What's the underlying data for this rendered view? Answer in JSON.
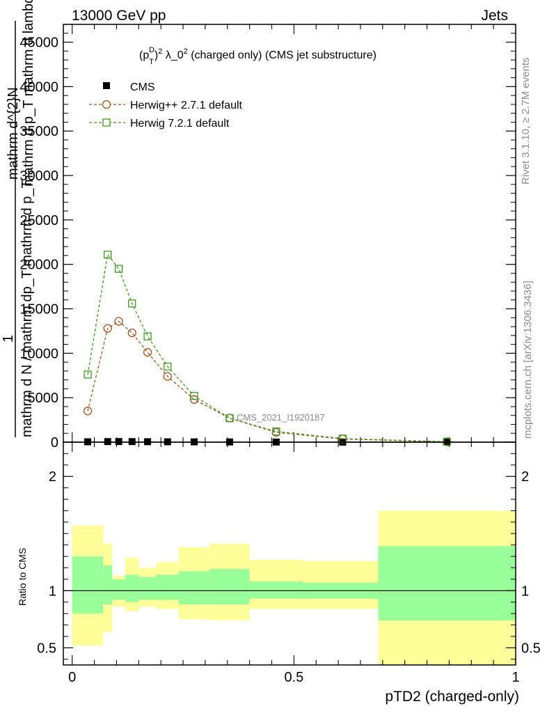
{
  "header": {
    "left": "13000 GeV pp",
    "right": "Jets"
  },
  "side_labels": {
    "rivet": "Rivet 3.1.10, ≥ 2.7M events",
    "mcplots": "mcplots.cern.ch [arXiv:1306.3436]"
  },
  "chart_data": [
    {
      "panel": "main",
      "type": "line",
      "title": "(p_T^D)^2 λ_0^2 (charged only) (CMS jet substructure)",
      "title_parts": {
        "p": "(p",
        "D": "D",
        "T": "T",
        "close": ")",
        "sup2a": "2",
        "lam": " λ_0",
        "sup2b": "2",
        "rest": " (charged only) (CMS jet substructure)"
      },
      "ylabel_lines": [
        "mathrm d^{2}N",
        "mathrm d p_T mathrm d lambda",
        "1",
        "mathrm d N / mathrm dp_T mathrm d p_T"
      ],
      "ylim": [
        0,
        47000
      ],
      "xlim": [
        -0.02,
        1.0
      ],
      "yticks": [
        0,
        5000,
        10000,
        15000,
        20000,
        25000,
        30000,
        35000,
        40000,
        45000
      ],
      "ytick_labels": [
        "0",
        "5000",
        "10000",
        "15000",
        "20000",
        "25000",
        "30000",
        "35000",
        "40000",
        "45000"
      ],
      "legend_position": "top-left",
      "watermark": "CMS_2021_I1920187",
      "series": [
        {
          "name": "CMS",
          "marker": "filled-square",
          "color": "#000000",
          "x": [
            0.035,
            0.08,
            0.105,
            0.135,
            0.17,
            0.215,
            0.275,
            0.355,
            0.46,
            0.61,
            0.845
          ],
          "y": [
            40,
            60,
            65,
            60,
            50,
            40,
            30,
            20,
            10,
            4,
            1
          ]
        },
        {
          "name": "Herwig++ 2.7.1 default",
          "marker": "open-circle",
          "color": "#a0521e",
          "x": [
            0.035,
            0.08,
            0.105,
            0.135,
            0.17,
            0.215,
            0.275,
            0.355,
            0.46,
            0.61,
            0.845
          ],
          "y": [
            3500,
            12800,
            13600,
            12300,
            10100,
            7400,
            4800,
            2700,
            1100,
            350,
            40
          ]
        },
        {
          "name": "Herwig 7.2.1 default",
          "marker": "open-square",
          "color": "#3d9a1f",
          "x": [
            0.035,
            0.08,
            0.105,
            0.135,
            0.17,
            0.215,
            0.275,
            0.355,
            0.46,
            0.61,
            0.845
          ],
          "y": [
            7600,
            21100,
            19500,
            15600,
            11900,
            8500,
            5200,
            2700,
            1200,
            400,
            50
          ]
        }
      ]
    },
    {
      "panel": "ratio",
      "type": "area",
      "ylabel": "Ratio to CMS",
      "ylim": [
        0.35,
        2.3
      ],
      "xlim": [
        -0.02,
        1.0
      ],
      "yticks": [
        0.5,
        1,
        2
      ],
      "ytick_labels": [
        "0.5",
        "1",
        "2"
      ],
      "xticks": [
        0,
        0.5,
        1
      ],
      "xtick_labels": [
        "0",
        "0.5",
        "1"
      ],
      "xlabel": "pTD2 (charged-only)",
      "reference_line": 1,
      "bands": {
        "edges": [
          0,
          0.07,
          0.09,
          0.12,
          0.15,
          0.19,
          0.24,
          0.31,
          0.4,
          0.52,
          0.69,
          1.0
        ],
        "yellow_lo": [
          0.52,
          0.64,
          0.86,
          0.82,
          0.86,
          0.84,
          0.75,
          0.74,
          0.84,
          0.84,
          0.35
        ],
        "yellow_hi": [
          1.57,
          1.41,
          1.13,
          1.29,
          1.2,
          1.25,
          1.38,
          1.41,
          1.27,
          1.26,
          1.7
        ],
        "green_lo": [
          0.8,
          0.88,
          0.92,
          0.9,
          0.92,
          0.92,
          0.88,
          0.88,
          0.93,
          0.93,
          0.74
        ],
        "green_hi": [
          1.3,
          1.22,
          1.1,
          1.14,
          1.12,
          1.14,
          1.17,
          1.19,
          1.08,
          1.07,
          1.39
        ],
        "yellow_color": "#ffff99",
        "green_color": "#99ff99"
      }
    }
  ]
}
